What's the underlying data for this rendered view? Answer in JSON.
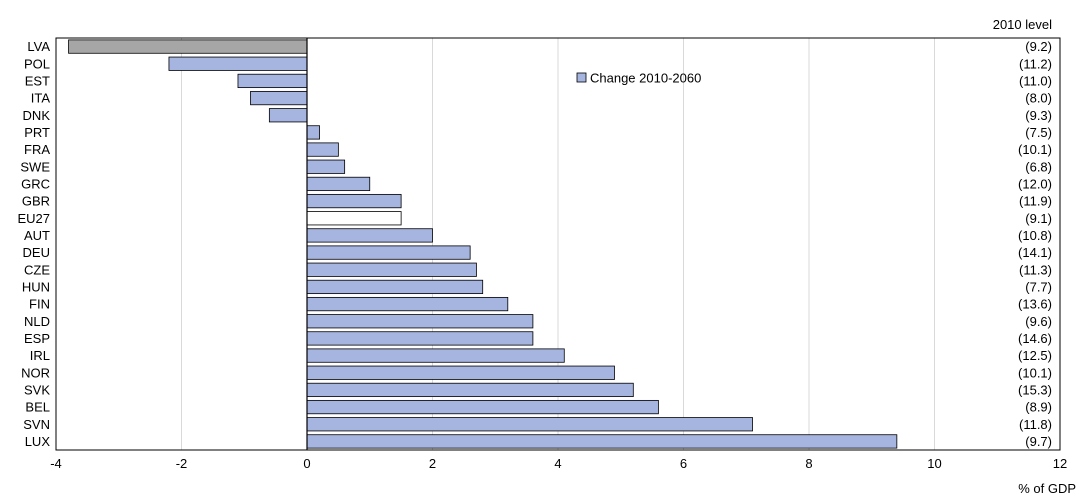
{
  "chart_data": {
    "type": "bar",
    "orientation": "horizontal",
    "categories": [
      "LVA",
      "POL",
      "EST",
      "ITA",
      "DNK",
      "PRT",
      "FRA",
      "SWE",
      "GRC",
      "GBR",
      "EU27",
      "AUT",
      "DEU",
      "CZE",
      "HUN",
      "FIN",
      "NLD",
      "ESP",
      "IRL",
      "NOR",
      "SVK",
      "BEL",
      "SVN",
      "LUX"
    ],
    "series": [
      {
        "name": "Change 2010-2060",
        "values": [
          -3.8,
          -2.2,
          -1.1,
          -0.9,
          -0.6,
          0.2,
          0.5,
          0.6,
          1.0,
          1.5,
          1.5,
          2.0,
          2.6,
          2.7,
          2.8,
          3.2,
          3.6,
          3.6,
          4.1,
          4.9,
          5.2,
          5.6,
          7.1,
          9.4
        ]
      }
    ],
    "levels_header": "2010 level",
    "levels": [
      "(9.2)",
      "(11.2)",
      "(11.0)",
      "(8.0)",
      "(9.3)",
      "(7.5)",
      "(10.1)",
      "(6.8)",
      "(12.0)",
      "(11.9)",
      "(9.1)",
      "(10.8)",
      "(14.1)",
      "(11.3)",
      "(7.7)",
      "(13.6)",
      "(9.6)",
      "(14.6)",
      "(12.5)",
      "(10.1)",
      "(15.3)",
      "(8.9)",
      "(11.8)",
      "(9.7)"
    ],
    "xlim": [
      -4,
      12
    ],
    "xticks": [
      -4,
      -2,
      0,
      2,
      4,
      6,
      8,
      10,
      12
    ],
    "xlabel": "% of GDP",
    "grid": "vertical",
    "legend_position": "top-center",
    "colors": {
      "bar": "#a6b4e0",
      "highlight_bar": "#a6a6a6",
      "eu_bar": "#ffffff",
      "bar_stroke": "#000000",
      "grid": "#d9d9d9"
    },
    "highlight_categories": [
      "LVA"
    ],
    "eu_categories": [
      "EU27"
    ]
  }
}
